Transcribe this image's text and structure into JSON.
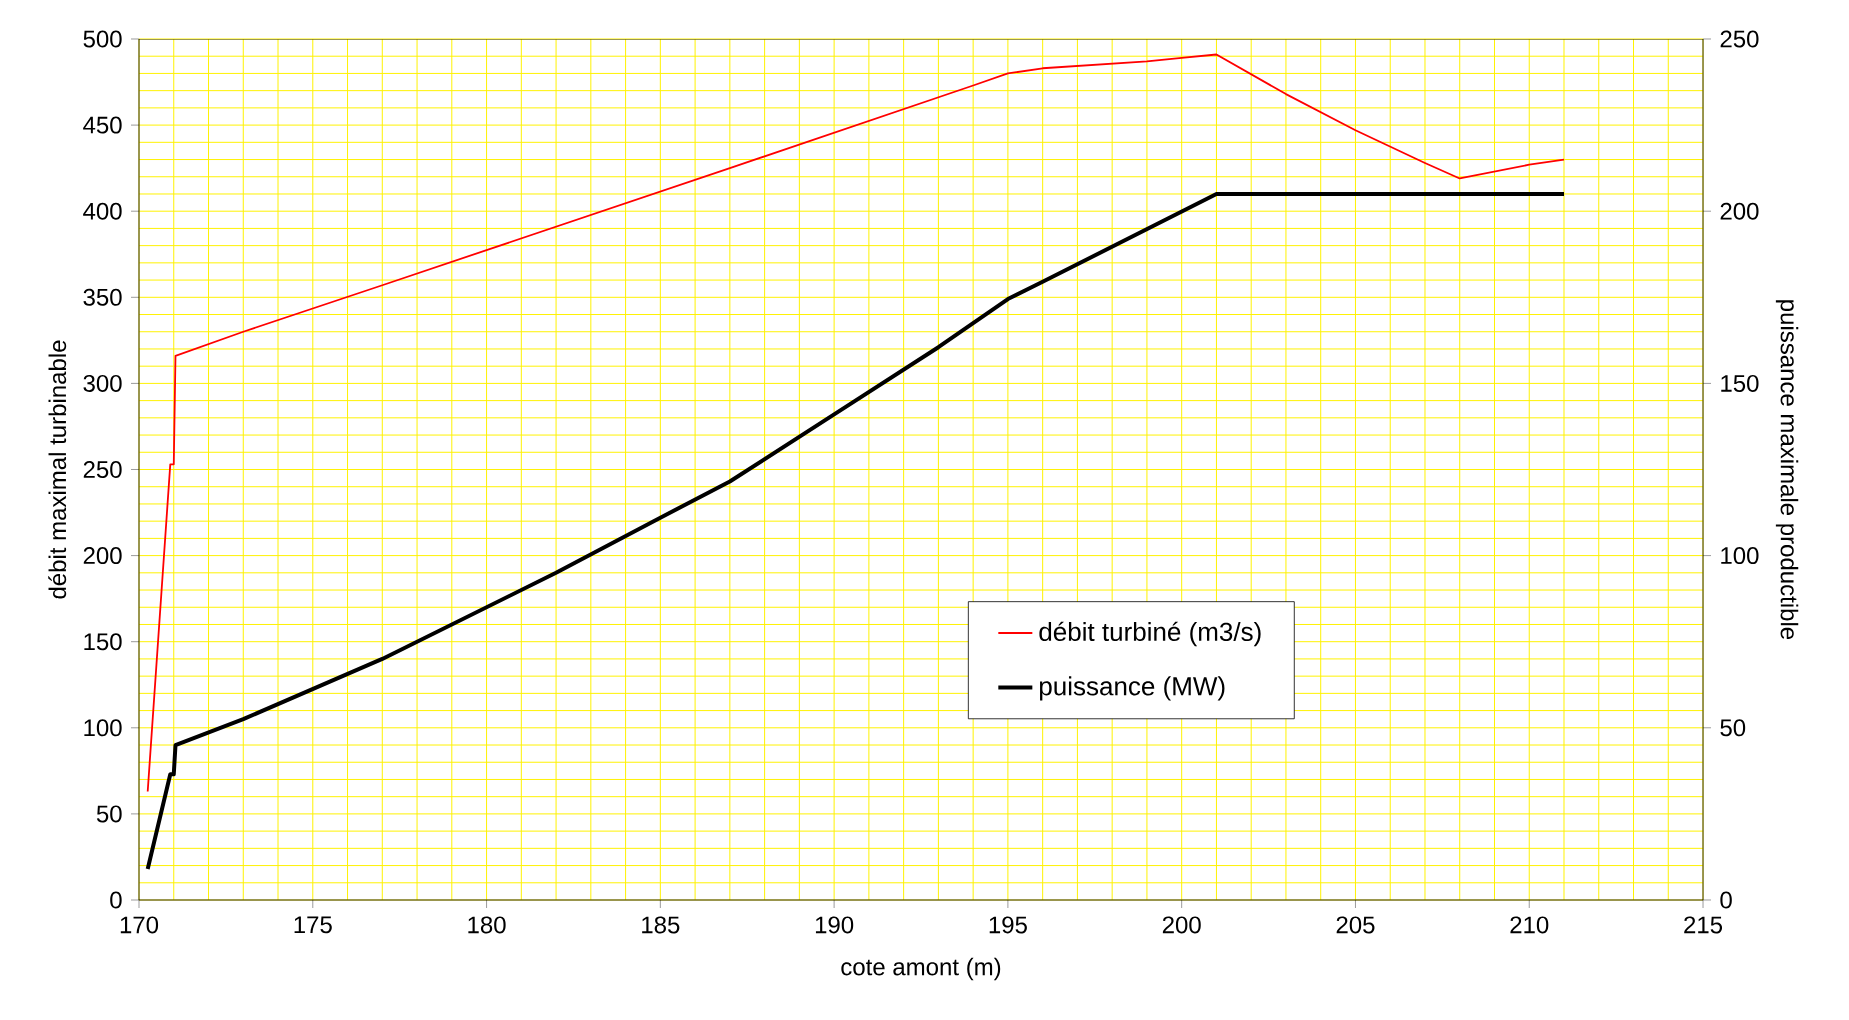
{
  "chart_data": {
    "type": "line",
    "xlabel": "cote amont (m)",
    "ylabel": "débit maximal turbinable",
    "y2label": "puissance maximale productible",
    "xlim": [
      170,
      215
    ],
    "xticks": [
      170,
      175,
      180,
      185,
      190,
      195,
      200,
      205,
      210,
      215
    ],
    "ylim": [
      0,
      500
    ],
    "yticks": [
      0,
      50,
      100,
      150,
      200,
      250,
      300,
      350,
      400,
      450,
      500
    ],
    "y2lim": [
      0,
      250
    ],
    "y2ticks": [
      0,
      50,
      100,
      150,
      200,
      250
    ],
    "grid": true,
    "legend": "right",
    "marker": "none",
    "line_style": "solid",
    "series": [
      {
        "name": "débit turbiné (m3/s)",
        "color": "#ff0000",
        "x": [
          170.25,
          170.9,
          171.0,
          171.05,
          173,
          177,
          187,
          194,
          195,
          196,
          199,
          200,
          201,
          203,
          205,
          207,
          208,
          209,
          210,
          211
        ],
        "values": [
          63,
          253,
          253,
          316,
          330,
          357,
          425,
          473,
          480,
          483,
          487,
          489,
          491,
          468,
          447,
          428,
          419,
          423,
          427,
          430
        ]
      },
      {
        "name": "puissance (MW)",
        "color": "#000000",
        "axis": "y2",
        "x": [
          170.25,
          170.9,
          171.0,
          171.05,
          173,
          177,
          182,
          185,
          187,
          190,
          193,
          195,
          196,
          201,
          211
        ],
        "values": [
          9,
          36.5,
          36.5,
          45,
          52.5,
          70,
          95,
          111,
          121.5,
          141,
          160.5,
          174.5,
          179.5,
          205,
          205
        ]
      }
    ]
  }
}
